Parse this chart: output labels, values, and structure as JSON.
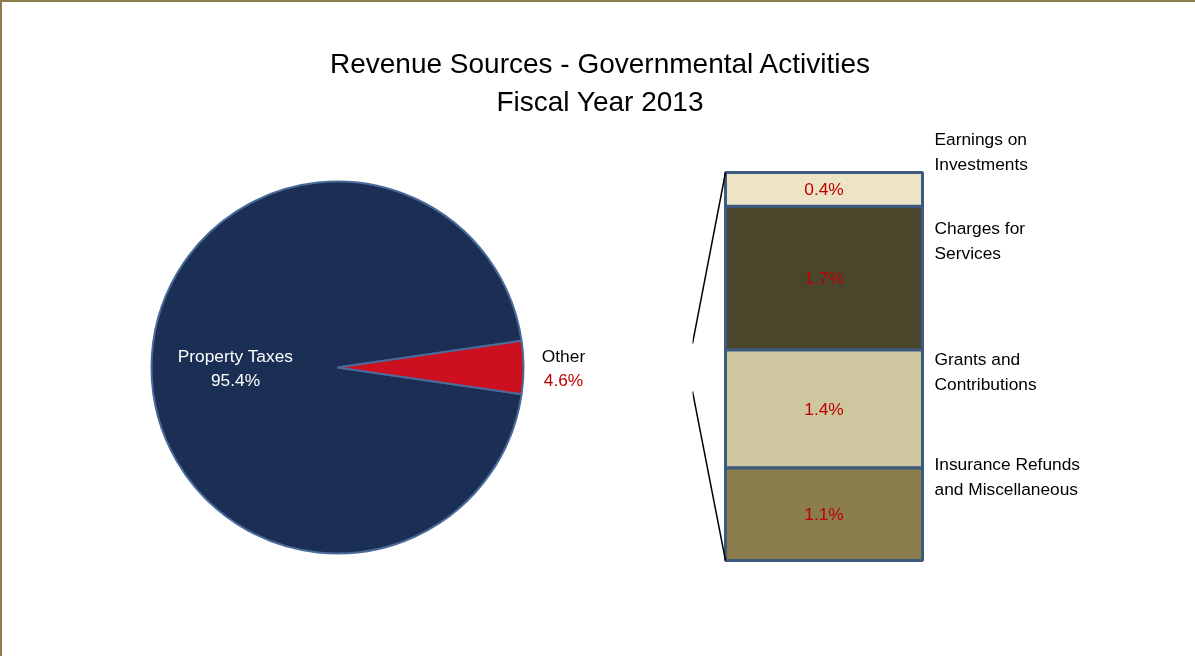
{
  "chart_data": [
    {
      "type": "pie",
      "title": "Revenue Sources - Governmental Activities",
      "subtitle": "Fiscal Year 2013",
      "categories": [
        "Property Taxes",
        "Other"
      ],
      "values": [
        95.4,
        4.6
      ],
      "colors": [
        "#1b2f55",
        "#cc1020"
      ],
      "value_labels": [
        "95.4%",
        "4.6%"
      ]
    },
    {
      "type": "bar",
      "stacked": true,
      "categories": [
        null
      ],
      "series": [
        {
          "name": "Insurance Refunds and Miscellaneous",
          "color": "#8b7d4c",
          "values": [
            1.1
          ],
          "value_labels": [
            "1.1%"
          ]
        },
        {
          "name": "Grants and Contributions",
          "color": "#cdc69e",
          "values": [
            1.4
          ],
          "value_labels": [
            "1.4%"
          ]
        },
        {
          "name": "Charges for Services",
          "color": "#4a462c",
          "values": [
            1.7
          ],
          "value_labels": [
            "1.7%"
          ]
        },
        {
          "name": "Earnings on Investments",
          "color": "#ece4c4",
          "values": [
            0.4
          ],
          "value_labels": [
            "0.4%"
          ]
        }
      ]
    }
  ]
}
